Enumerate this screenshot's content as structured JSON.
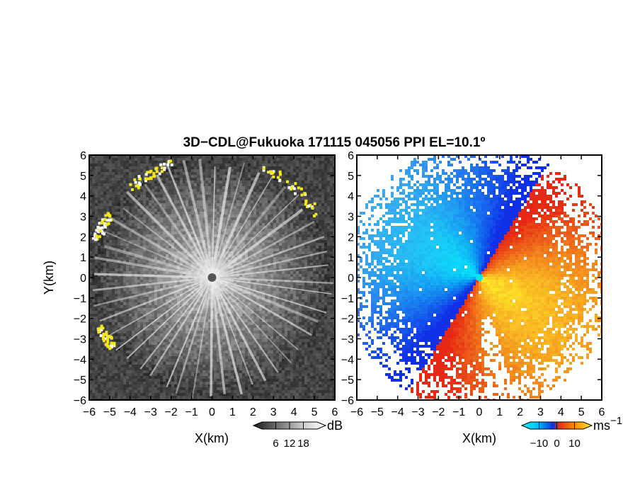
{
  "title": "3D−CDL@Fukuoka 171115 045056 PPI EL=10.1º",
  "chart_data": [
    {
      "type": "heatmap",
      "name": "snr-ppi",
      "xlabel": "X(km)",
      "ylabel": "Y(km)",
      "xlim": [
        -6,
        6
      ],
      "ylim": [
        -6,
        6
      ],
      "xticks": [
        "−6",
        "−5",
        "−4",
        "−3",
        "−2",
        "−1",
        "0",
        "1",
        "2",
        "3",
        "4",
        "5",
        "6"
      ],
      "yticks": [
        "−6",
        "−5",
        "−4",
        "−3",
        "−2",
        "−1",
        "0",
        "1",
        "2",
        "3",
        "4",
        "5",
        "6"
      ],
      "colorbar": {
        "label": "dB",
        "ticks": [
          "6",
          "12",
          "18"
        ],
        "range": [
          0,
          24
        ]
      }
    },
    {
      "type": "heatmap",
      "name": "doppler-velocity-ppi",
      "xlabel": "X(km)",
      "ylabel": "",
      "xlim": [
        -6,
        6
      ],
      "ylim": [
        -6,
        6
      ],
      "xticks": [
        "−6",
        "−5",
        "−4",
        "−3",
        "−2",
        "−1",
        "0",
        "1",
        "2",
        "3",
        "4",
        "5",
        "6"
      ],
      "yticks": [
        "−6",
        "−5",
        "−4",
        "−3",
        "−2",
        "−1",
        "0",
        "1",
        "2",
        "3",
        "4",
        "5",
        "6"
      ],
      "colorbar": {
        "label": "ms",
        "label_sup": "−1",
        "ticks": [
          "−10",
          "0",
          "10"
        ],
        "range": [
          -15,
          15
        ]
      }
    }
  ],
  "colors": {
    "snr_low": "#1e1e1e",
    "snr_high": "#f4f4f4",
    "snr_saturated": "#f2e61e",
    "vel_neg_far": "#1030e8",
    "vel_neg_near": "#00e8f8",
    "vel_zero": "#e83018",
    "vel_pos_far": "#ffe828"
  }
}
